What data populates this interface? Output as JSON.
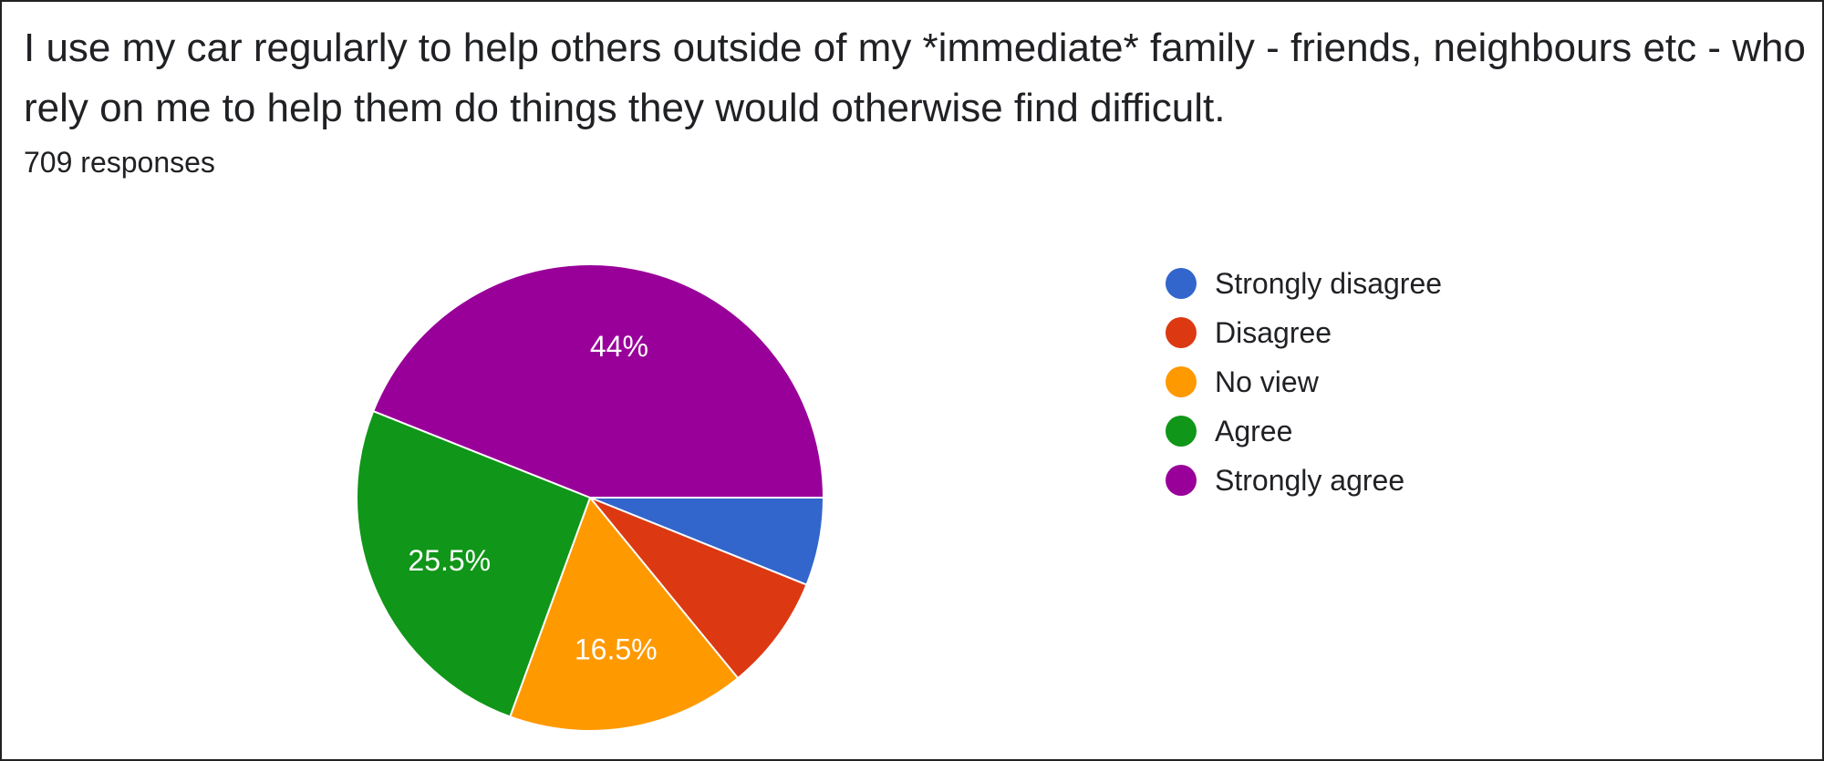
{
  "question": {
    "title": "I use my car regularly to help others outside of my *immediate* family - friends, neighbours etc - who rely on me to help them do things they would otherwise find difficult.",
    "response_count": "709 responses"
  },
  "chart_data": {
    "type": "pie",
    "title": "I use my car regularly to help others outside of my *immediate* family - friends, neighbours etc - who rely on me to help them do things they would otherwise find difficult.",
    "total_responses": 709,
    "legend_position": "right",
    "start": "3 o'clock, clockwise",
    "slices": [
      {
        "label": "Strongly disagree",
        "value": 6.1,
        "color": "#3366cc",
        "data_label": ""
      },
      {
        "label": "Disagree",
        "value": 8.0,
        "color": "#dc3912",
        "data_label": ""
      },
      {
        "label": "No view",
        "value": 16.5,
        "color": "#ff9900",
        "data_label": "16.5%"
      },
      {
        "label": "Agree",
        "value": 25.5,
        "color": "#109618",
        "data_label": "25.5%"
      },
      {
        "label": "Strongly agree",
        "value": 44.0,
        "color": "#990099",
        "data_label": "44%"
      }
    ]
  }
}
